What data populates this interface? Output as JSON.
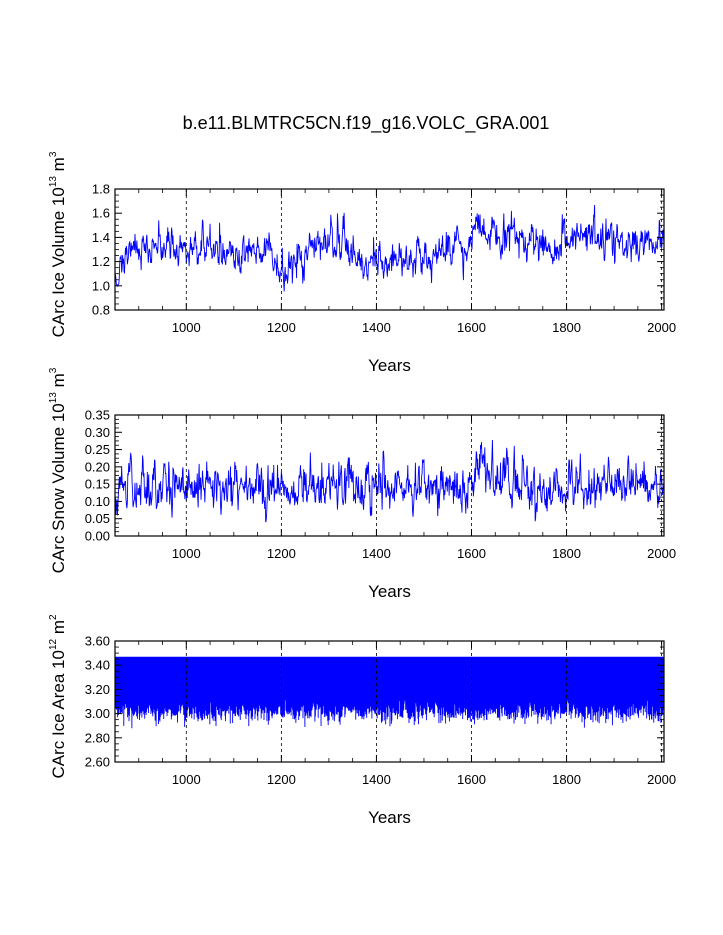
{
  "page": {
    "title": "b.e11.BLMTRC5CN.f19_g16.VOLC_GRA.001"
  },
  "chart_data": [
    {
      "type": "line",
      "ylabel_pre": "CArc Ice Volume 10",
      "ylabel_exp": "13",
      "ylabel_unit": " m",
      "ylabel_unit_exp": "3",
      "xlabel": "Years",
      "xlim": [
        850,
        2005
      ],
      "ylim": [
        0.8,
        1.8
      ],
      "xticks": [
        1000,
        1200,
        1400,
        1600,
        1800,
        2000
      ],
      "xtick_labels": [
        "1000",
        "1200",
        "1400",
        "1600",
        "1800",
        "2000"
      ],
      "yticks": [
        0.8,
        1.0,
        1.2,
        1.4,
        1.6,
        1.8
      ],
      "ytick_labels": [
        "0.8",
        "1.0",
        "1.2",
        "1.4",
        "1.6",
        "1.8"
      ],
      "grid": "vertical dashed at x ticks",
      "color": "#0000ff",
      "series": [
        {
          "noise": 0.11,
          "keypoints": [
            [
              850,
              1.05
            ],
            [
              870,
              1.25
            ],
            [
              900,
              1.3
            ],
            [
              950,
              1.32
            ],
            [
              1000,
              1.3
            ],
            [
              1050,
              1.33
            ],
            [
              1100,
              1.28
            ],
            [
              1150,
              1.32
            ],
            [
              1180,
              1.2
            ],
            [
              1200,
              1.12
            ],
            [
              1210,
              1.02
            ],
            [
              1220,
              1.18
            ],
            [
              1250,
              1.25
            ],
            [
              1300,
              1.35
            ],
            [
              1340,
              1.33
            ],
            [
              1360,
              1.2
            ],
            [
              1380,
              1.15
            ],
            [
              1400,
              1.22
            ],
            [
              1450,
              1.25
            ],
            [
              1500,
              1.22
            ],
            [
              1550,
              1.28
            ],
            [
              1590,
              1.3
            ],
            [
              1610,
              1.45
            ],
            [
              1650,
              1.42
            ],
            [
              1700,
              1.38
            ],
            [
              1750,
              1.35
            ],
            [
              1770,
              1.25
            ],
            [
              1800,
              1.38
            ],
            [
              1850,
              1.42
            ],
            [
              1900,
              1.35
            ],
            [
              1950,
              1.32
            ],
            [
              2005,
              1.4
            ]
          ]
        }
      ]
    },
    {
      "type": "line",
      "ylabel_pre": "CArc Snow Volume 10",
      "ylabel_exp": "13",
      "ylabel_unit": " m",
      "ylabel_unit_exp": "3",
      "xlabel": "Years",
      "xlim": [
        850,
        2005
      ],
      "ylim": [
        0.0,
        0.35
      ],
      "xticks": [
        1000,
        1200,
        1400,
        1600,
        1800,
        2000
      ],
      "xtick_labels": [
        "1000",
        "1200",
        "1400",
        "1600",
        "1800",
        "2000"
      ],
      "yticks": [
        0.0,
        0.05,
        0.1,
        0.15,
        0.2,
        0.25,
        0.3,
        0.35
      ],
      "ytick_labels": [
        "0.00",
        "0.05",
        "0.10",
        "0.15",
        "0.20",
        "0.25",
        "0.30",
        "0.35"
      ],
      "grid": "vertical dashed at x ticks",
      "color": "#0000ff",
      "series": [
        {
          "noise": 0.05,
          "keypoints": [
            [
              850,
              0.08
            ],
            [
              870,
              0.15
            ],
            [
              900,
              0.15
            ],
            [
              1000,
              0.14
            ],
            [
              1100,
              0.15
            ],
            [
              1200,
              0.13
            ],
            [
              1300,
              0.15
            ],
            [
              1400,
              0.14
            ],
            [
              1500,
              0.15
            ],
            [
              1600,
              0.15
            ],
            [
              1620,
              0.2
            ],
            [
              1650,
              0.16
            ],
            [
              1700,
              0.15
            ],
            [
              1800,
              0.13
            ],
            [
              1850,
              0.15
            ],
            [
              1900,
              0.16
            ],
            [
              2005,
              0.15
            ]
          ]
        }
      ]
    },
    {
      "type": "line",
      "ylabel_pre": "CArc Ice Area 10",
      "ylabel_exp": "12",
      "ylabel_unit": " m",
      "ylabel_unit_exp": "2",
      "xlabel": "Years",
      "xlim": [
        850,
        2005
      ],
      "ylim": [
        2.6,
        3.6
      ],
      "xticks": [
        1000,
        1200,
        1400,
        1600,
        1800,
        2000
      ],
      "xtick_labels": [
        "1000",
        "1200",
        "1400",
        "1600",
        "1800",
        "2000"
      ],
      "yticks": [
        2.6,
        2.8,
        3.0,
        3.2,
        3.4,
        3.6
      ],
      "ytick_labels": [
        "2.60",
        "2.80",
        "3.00",
        "3.20",
        "3.40",
        "3.60"
      ],
      "grid": "vertical dashed at x ticks",
      "color": "#0000ff",
      "series": [
        {
          "mode": "seasonal",
          "max": 3.47,
          "min_center": 3.02,
          "min_spread": 0.05,
          "min_floor": 2.78
        }
      ]
    }
  ]
}
